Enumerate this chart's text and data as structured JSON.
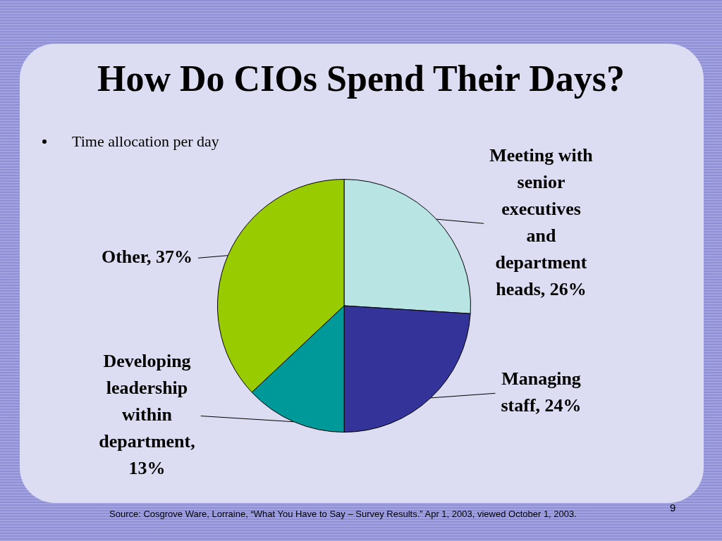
{
  "chart_data": {
    "type": "pie",
    "title": "How Do CIOs Spend Their Days?",
    "subtitle": "Time allocation per day",
    "categories": [
      "Meeting with senior executives and department heads, 26%",
      "Managing staff, 24%",
      "Developing leadership within department, 13%",
      "Other, 37%"
    ],
    "values": [
      26,
      24,
      13,
      37
    ],
    "colors": [
      "#b8e4e4",
      "#333399",
      "#009999",
      "#99cc00"
    ],
    "legend": false,
    "annotations": [
      "Source: Cosgrove Ware, Lorraine, “What You Have to Say – Survey Results.” Apr 1, 2003, viewed October 1, 2003.",
      "9"
    ]
  }
}
